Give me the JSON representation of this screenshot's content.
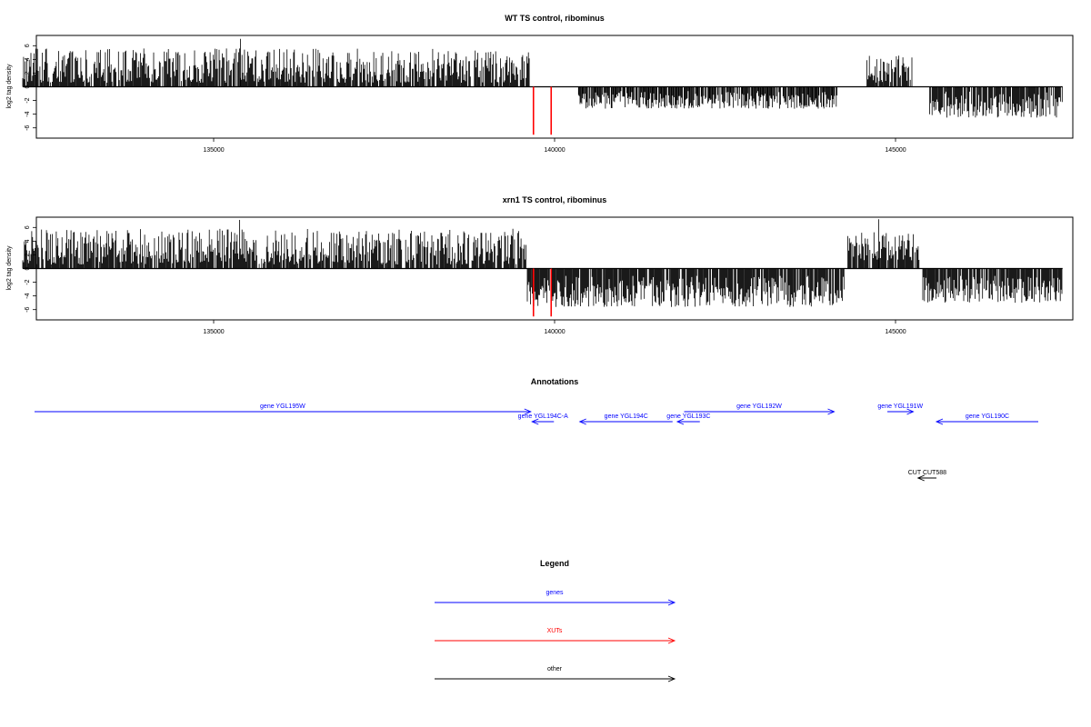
{
  "chart_data": [
    {
      "type": "bar",
      "title": "WT TS control, ribominus",
      "ylabel": "log2 tag density",
      "xlabel": "",
      "xlim": [
        132400,
        147600
      ],
      "ylim": [
        -7.5,
        7.5
      ],
      "yticks": [
        "6",
        "4",
        "2",
        "0",
        "-2",
        "-4",
        "-6"
      ],
      "xticks": [
        "135000",
        "140000",
        "145000"
      ],
      "bar_color": "#000000",
      "xut_color": "#ff0000",
      "segments": [
        {
          "from": 132200,
          "to": 139630,
          "min": 0.6,
          "max": 5.6,
          "spike": 7.0
        },
        {
          "from": 140350,
          "to": 144150,
          "min": -3.2,
          "max": -0.7
        },
        {
          "from": 144580,
          "to": 145250,
          "min": 0.6,
          "max": 4.8
        },
        {
          "from": 145500,
          "to": 147450,
          "min": -4.5,
          "max": -0.8
        }
      ],
      "xut_spikes": [
        {
          "x": 139690,
          "y": -7.0
        },
        {
          "x": 139950,
          "y": -7.0
        }
      ]
    },
    {
      "type": "bar",
      "title": "xrn1 TS control, ribominus",
      "ylabel": "log2 tag density",
      "xlabel": "",
      "xlim": [
        132400,
        147600
      ],
      "ylim": [
        -7.5,
        7.5
      ],
      "yticks": [
        "6",
        "4",
        "2",
        "0",
        "-2",
        "-4",
        "-6"
      ],
      "xticks": [
        "135000",
        "140000",
        "145000"
      ],
      "bar_color": "#000000",
      "xut_color": "#ff0000",
      "segments": [
        {
          "from": 132200,
          "to": 139600,
          "min": 0.6,
          "max": 5.8,
          "spike": 7.1
        },
        {
          "from": 139600,
          "to": 144250,
          "min": -5.6,
          "max": -1.2
        },
        {
          "from": 144300,
          "to": 145350,
          "min": 1.2,
          "max": 5.3,
          "spike": 7.2
        },
        {
          "from": 145400,
          "to": 147450,
          "min": -5.0,
          "max": -1.2
        }
      ],
      "xut_spikes": [
        {
          "x": 139690,
          "y": -7.0
        },
        {
          "x": 139950,
          "y": -7.0
        }
      ]
    }
  ],
  "annotations": {
    "title": "Annotations",
    "items": [
      {
        "label": "gene YGL195W",
        "start": 131900,
        "end": 139650,
        "strand": "+",
        "row": 0,
        "color": "#0000ff"
      },
      {
        "label": "gene YGL194C-A",
        "start": 139670,
        "end": 139990,
        "strand": "-",
        "row": 1,
        "color": "#0000ff"
      },
      {
        "label": "gene YGL194C",
        "start": 140370,
        "end": 141730,
        "strand": "-",
        "row": 1,
        "color": "#0000ff"
      },
      {
        "label": "gene YGL193C",
        "start": 141800,
        "end": 142130,
        "strand": "-",
        "row": 1,
        "color": "#0000ff"
      },
      {
        "label": "gene YGL192W",
        "start": 141900,
        "end": 144100,
        "strand": "+",
        "row": 0,
        "color": "#0000ff"
      },
      {
        "label": "gene YGL191W",
        "start": 144880,
        "end": 145260,
        "strand": "+",
        "row": 0,
        "color": "#0000ff"
      },
      {
        "label": "gene YGL190C",
        "start": 145600,
        "end": 147450,
        "strand": "-",
        "row": 1,
        "color": "#0000ff"
      },
      {
        "label": "CUT CUT588",
        "start": 145330,
        "end": 145600,
        "strand": "-",
        "row": 2,
        "color": "#000000"
      }
    ]
  },
  "legend": {
    "title": "Legend",
    "items": [
      {
        "label": "genes",
        "color": "#0000ff"
      },
      {
        "label": "XUTs",
        "color": "#ff0000"
      },
      {
        "label": "other",
        "color": "#000000"
      }
    ]
  }
}
